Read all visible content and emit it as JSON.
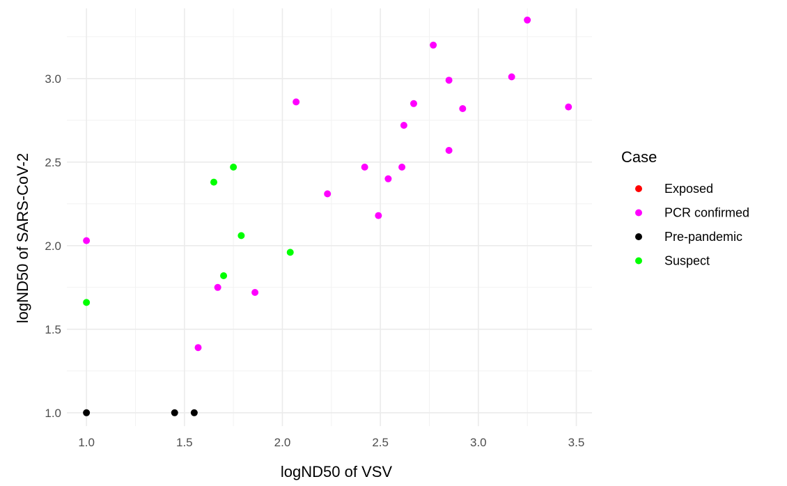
{
  "chart_data": {
    "type": "scatter",
    "title": "",
    "xlabel": "logND50 of VSV",
    "ylabel": "logND50 of SARS-CoV-2",
    "xlim": [
      0.9,
      3.58
    ],
    "ylim": [
      0.92,
      3.42
    ],
    "x_ticks": [
      "1.0",
      "1.5",
      "2.0",
      "2.5",
      "3.0",
      "3.5"
    ],
    "y_ticks": [
      "1.0",
      "1.5",
      "2.0",
      "2.5",
      "3.0"
    ],
    "grid": true,
    "legend": {
      "title": "Case",
      "position": "right"
    },
    "series": [
      {
        "name": "Exposed",
        "color": "#ff0000",
        "points": []
      },
      {
        "name": "PCR confirmed",
        "color": "#ff00ff",
        "points": [
          {
            "x": 1.0,
            "y": 2.03
          },
          {
            "x": 1.57,
            "y": 1.39
          },
          {
            "x": 1.67,
            "y": 1.75
          },
          {
            "x": 1.86,
            "y": 1.72
          },
          {
            "x": 2.07,
            "y": 2.86
          },
          {
            "x": 2.23,
            "y": 2.31
          },
          {
            "x": 2.42,
            "y": 2.47
          },
          {
            "x": 2.49,
            "y": 2.18
          },
          {
            "x": 2.54,
            "y": 2.4
          },
          {
            "x": 2.61,
            "y": 2.47
          },
          {
            "x": 2.62,
            "y": 2.72
          },
          {
            "x": 2.67,
            "y": 2.85
          },
          {
            "x": 2.77,
            "y": 3.2
          },
          {
            "x": 2.85,
            "y": 2.99
          },
          {
            "x": 2.85,
            "y": 2.57
          },
          {
            "x": 2.92,
            "y": 2.82
          },
          {
            "x": 3.17,
            "y": 3.01
          },
          {
            "x": 3.25,
            "y": 3.35
          },
          {
            "x": 3.46,
            "y": 2.83
          }
        ]
      },
      {
        "name": "Pre-pandemic",
        "color": "#000000",
        "points": [
          {
            "x": 1.0,
            "y": 1.0
          },
          {
            "x": 1.45,
            "y": 1.0
          },
          {
            "x": 1.55,
            "y": 1.0
          }
        ]
      },
      {
        "name": "Suspect",
        "color": "#00ff00",
        "points": [
          {
            "x": 1.0,
            "y": 1.66
          },
          {
            "x": 1.65,
            "y": 2.38
          },
          {
            "x": 1.7,
            "y": 1.82
          },
          {
            "x": 1.75,
            "y": 2.47
          },
          {
            "x": 1.79,
            "y": 2.06
          },
          {
            "x": 2.04,
            "y": 1.96
          }
        ]
      }
    ]
  }
}
